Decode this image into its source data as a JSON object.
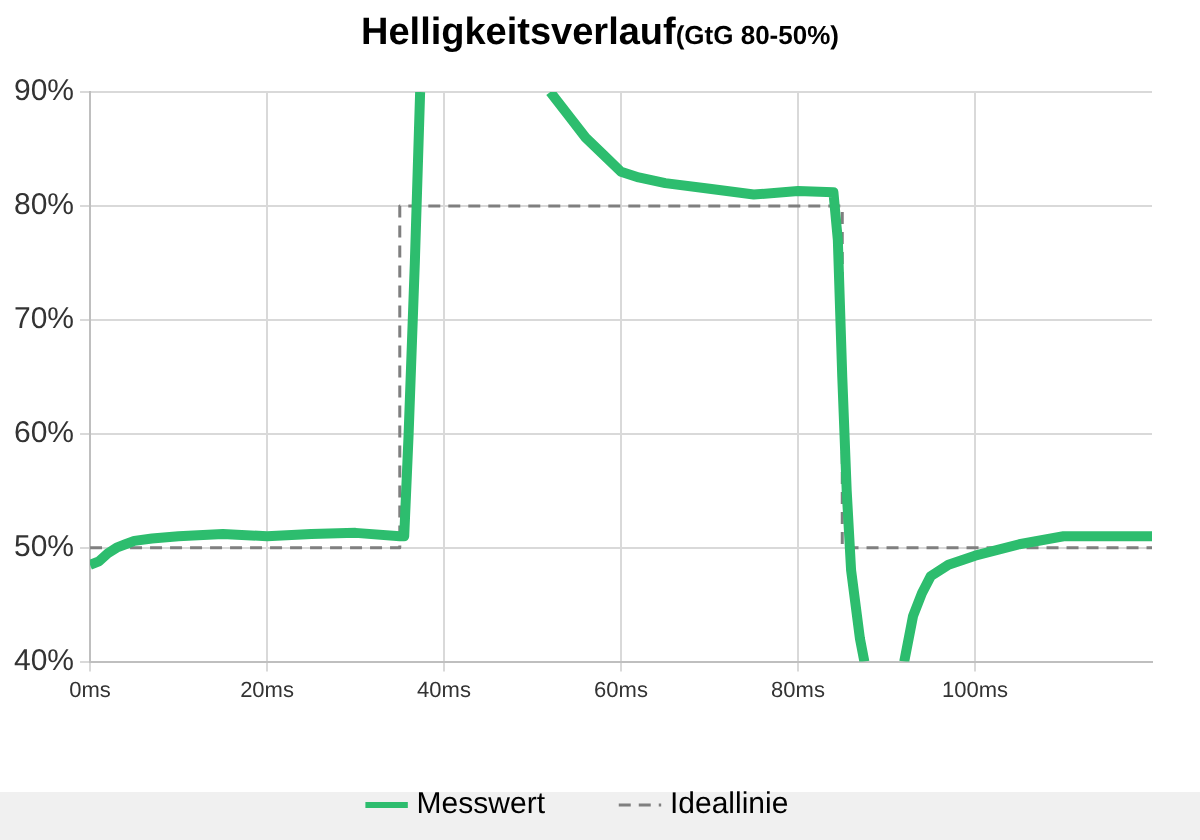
{
  "chart_data": {
    "type": "line",
    "title": "Helligkeitsverlauf",
    "subtitle": "(GtG 80-50%)",
    "xlim": [
      0,
      120
    ],
    "xticks": [
      {
        "value": 0,
        "label": "0ms"
      },
      {
        "value": 20,
        "label": "20ms"
      },
      {
        "value": 40,
        "label": "40ms"
      },
      {
        "value": 60,
        "label": "60ms"
      },
      {
        "value": 80,
        "label": "80ms"
      },
      {
        "value": 100,
        "label": "100ms"
      }
    ],
    "ylim": [
      40,
      90
    ],
    "yticks": [
      {
        "value": 40,
        "label": "40%"
      },
      {
        "value": 50,
        "label": "50%"
      },
      {
        "value": 60,
        "label": "60%"
      },
      {
        "value": 70,
        "label": "70%"
      },
      {
        "value": 80,
        "label": "80%"
      },
      {
        "value": 90,
        "label": "90%"
      }
    ],
    "grid": true,
    "legend": "bottom",
    "marker": "none",
    "series": [
      {
        "name": "Messwert",
        "color": "#2dbd6e",
        "line_style": "solid",
        "x": [
          0,
          1,
          2,
          3,
          4,
          5,
          7,
          10,
          15,
          20,
          25,
          30,
          35,
          35.5,
          36,
          36.7,
          37.3,
          45,
          52,
          54,
          56,
          58,
          60,
          62,
          65,
          70,
          75,
          80,
          84,
          84.5,
          85,
          85.5,
          86,
          87,
          87.5,
          90,
          92,
          93,
          94,
          95,
          97,
          100,
          105,
          110,
          115,
          120
        ],
        "values": [
          48.5,
          48.8,
          49.5,
          50,
          50.3,
          50.6,
          50.8,
          51,
          51.2,
          51,
          51.2,
          51.3,
          51,
          51,
          60,
          75,
          90,
          null,
          90,
          88,
          86,
          84.5,
          83,
          82.5,
          82,
          81.5,
          81,
          81.3,
          81.2,
          77,
          65,
          55,
          48,
          42,
          40,
          null,
          40,
          44,
          46,
          47.5,
          48.5,
          49.3,
          50.3,
          51,
          51,
          51
        ]
      },
      {
        "name": "Ideallinie",
        "color": "#7f7f7f",
        "line_style": "dashed",
        "x": [
          0,
          35,
          35,
          85,
          85,
          120
        ],
        "values": [
          50,
          50,
          80,
          80,
          50,
          50
        ]
      }
    ]
  }
}
